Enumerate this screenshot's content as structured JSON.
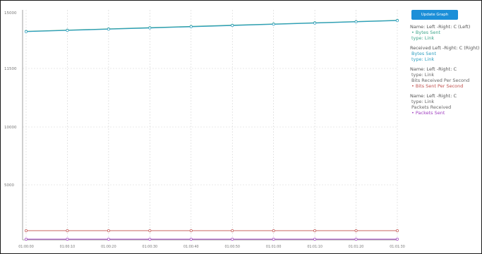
{
  "colors": {
    "green": "#3ea58a",
    "teal": "#2e9fc0",
    "red": "#c0504d",
    "purple": "#a040c0",
    "grid": "#d3d3d3",
    "axis": "#888888",
    "button": "#1c8fd8"
  },
  "legend": {
    "toggle_label": "Update Graph",
    "entries": [
      {
        "name": "Name: Left -Right: C (Left)",
        "lines": [
          "• Bytes Sent",
          "type: Link"
        ],
        "color": "#3ea58a"
      },
      {
        "name": "Received Left -Right: C (Right)",
        "lines": [
          "Bytes Sent",
          "type: Link"
        ],
        "color": "#2e9fc0"
      },
      {
        "name": "Name: Left -Right: C",
        "lines": [
          "type: Link",
          "Bits Received Per Second",
          "• Bits Sent Per Second"
        ],
        "color": "#c0504d"
      },
      {
        "name": "Name: Left -Right: C",
        "lines": [
          "type: Link",
          "Packets Received",
          "• Packets Sent"
        ],
        "color": "#a040c0"
      }
    ]
  },
  "chart_data": {
    "type": "line",
    "x": [
      "01:00:00",
      "01:00:10",
      "01:00:20",
      "01:00:30",
      "01:00:40",
      "01:00:50",
      "01:01:00",
      "01:01:10",
      "01:01:20",
      "01:01:30"
    ],
    "y_ticks": [
      "15000",
      "11500",
      "10000",
      "5000",
      ""
    ],
    "ylim": [
      0,
      15000
    ],
    "grid": true,
    "legend_position": "right",
    "series": [
      {
        "color": "#3ea58a",
        "values": [
          13600,
          13680,
          13760,
          13840,
          13920,
          14000,
          14080,
          14160,
          14240,
          14320
        ]
      },
      {
        "color": "#2e9fc0",
        "values": [
          13580,
          13660,
          13740,
          13820,
          13900,
          13980,
          14060,
          14140,
          14220,
          14300
        ]
      },
      {
        "color": "#c0504d",
        "values": [
          600,
          600,
          600,
          600,
          600,
          600,
          600,
          600,
          600,
          600
        ]
      },
      {
        "color": "#a040c0",
        "values": [
          0,
          0,
          0,
          0,
          0,
          0,
          0,
          0,
          0,
          0
        ]
      }
    ]
  }
}
